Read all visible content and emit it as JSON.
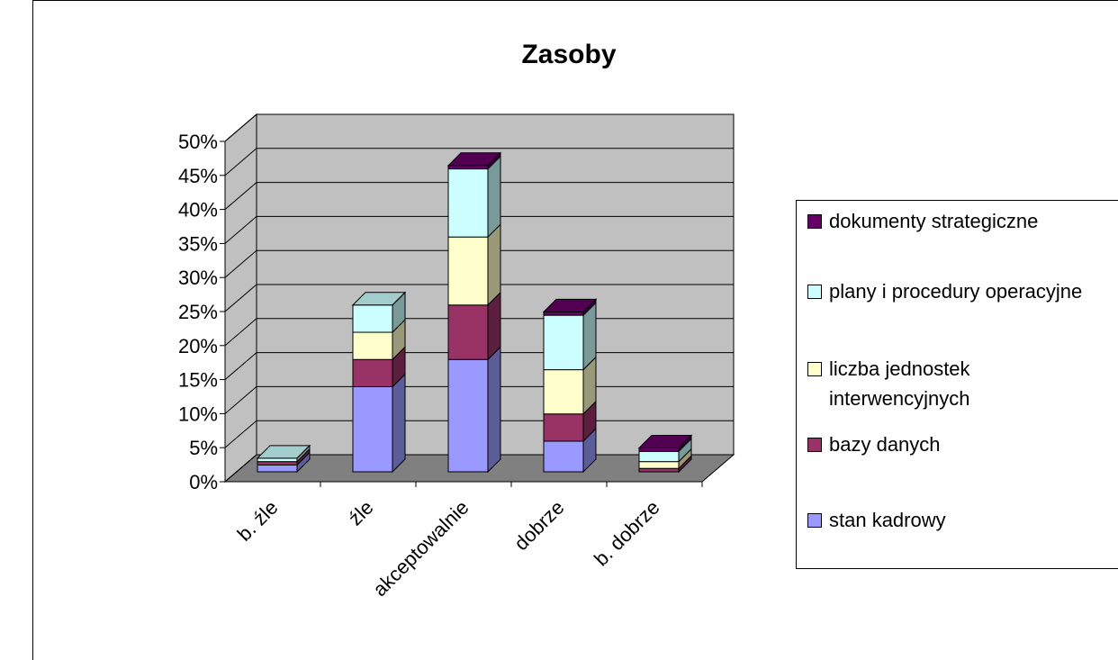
{
  "chart_data": {
    "type": "bar3d_stacked",
    "title": "Zasoby",
    "categories": [
      "b. źle",
      "źle",
      "akceptowalnie",
      "dobrze",
      "b. dobrze"
    ],
    "series": [
      {
        "name": "stan kadrowy",
        "color": "#9999ff",
        "values": [
          1,
          12.5,
          16.5,
          4.5,
          0
        ]
      },
      {
        "name": "bazy danych",
        "color": "#993366",
        "values": [
          0.5,
          4,
          8,
          4,
          0.5
        ]
      },
      {
        "name": "liczba jednostek interwencyjnych",
        "color": "#ffffcc",
        "values": [
          0,
          4,
          10,
          6.5,
          1
        ]
      },
      {
        "name": "plany i procedury operacyjne",
        "color": "#ccffff",
        "values": [
          0.5,
          4,
          10,
          8,
          1.5
        ]
      },
      {
        "name": "dokumenty strategiczne",
        "color": "#660066",
        "values": [
          0,
          0,
          0.5,
          0.5,
          0.5
        ]
      }
    ],
    "ylim": [
      0,
      50
    ],
    "yticks": [
      {
        "value": 0,
        "label": "0%"
      },
      {
        "value": 5,
        "label": "5%"
      },
      {
        "value": 10,
        "label": "10%"
      },
      {
        "value": 15,
        "label": "15%"
      },
      {
        "value": 20,
        "label": "20%"
      },
      {
        "value": 25,
        "label": "25%"
      },
      {
        "value": 30,
        "label": "30%"
      },
      {
        "value": 35,
        "label": "35%"
      },
      {
        "value": 40,
        "label": "40%"
      },
      {
        "value": 45,
        "label": "45%"
      },
      {
        "value": 50,
        "label": "50%"
      }
    ],
    "grid": true,
    "legend": "right"
  }
}
